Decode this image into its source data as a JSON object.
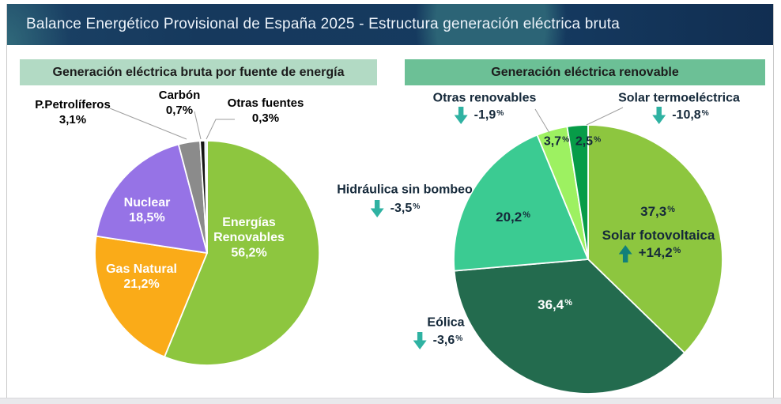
{
  "header": {
    "title": "Balance Energético Provisional de España 2025 - Estructura generación eléctrica bruta",
    "bg_color": "#16395d",
    "accent_blob_color": "#2c6476",
    "text_color": "#edf3fa"
  },
  "trend_icons": {
    "up_color": "#11807a",
    "down_color": "#2fb2a2"
  },
  "chart_data": [
    {
      "type": "pie",
      "title": "Generación eléctrica bruta por fuente de energía",
      "title_bg": "#b2dac4",
      "direction": "clockwise",
      "start_angle_deg": 0,
      "unit": "%",
      "slices": [
        {
          "label": "Energías Renovables",
          "value": 56.2,
          "pct_display": "56,2%",
          "color": "#8dc63f",
          "label_inside": true,
          "label_color": "#ffffff"
        },
        {
          "label": "Gas Natural",
          "value": 21.2,
          "pct_display": "21,2%",
          "color": "#faab18",
          "label_inside": true,
          "label_color": "#ffffff"
        },
        {
          "label": "Nuclear",
          "value": 18.5,
          "pct_display": "18,5%",
          "color": "#9673e6",
          "label_inside": true,
          "label_color": "#ffffff"
        },
        {
          "label": "P.Petrolíferos",
          "value": 3.1,
          "pct_display": "3,1%",
          "color": "#8b8b8b",
          "label_inside": false,
          "label_color": "#000000"
        },
        {
          "label": "Carbón",
          "value": 0.7,
          "pct_display": "0,7%",
          "color": "#141414",
          "label_inside": false,
          "label_color": "#000000"
        },
        {
          "label": "Otras fuentes",
          "value": 0.3,
          "pct_display": "0,3%",
          "color": "#bdd7ee",
          "label_inside": false,
          "label_color": "#000000"
        }
      ]
    },
    {
      "type": "pie",
      "title": "Generación eléctrica renovable",
      "title_bg": "#6cc096",
      "direction": "clockwise",
      "start_angle_deg": 0,
      "unit": "%",
      "slices": [
        {
          "label": "Solar fotovoltaica",
          "value": 37.3,
          "pct_display": "37,3%",
          "change_display": "+14,2%",
          "trend": "up",
          "color": "#8dc63f",
          "label_inside": true
        },
        {
          "label": "Eólica",
          "value": 36.4,
          "pct_display": "36,4%",
          "change_display": "-3,6%",
          "trend": "down",
          "color": "#236b4e",
          "label_inside": false
        },
        {
          "label": "Hidráulica sin bombeo",
          "value": 20.2,
          "pct_display": "20,2%",
          "change_display": "-3,5%",
          "trend": "down",
          "color": "#3bcb92",
          "label_inside": false
        },
        {
          "label": "Otras renovables",
          "value": 3.7,
          "pct_display": "3,7%",
          "change_display": "-1,9%",
          "trend": "down",
          "color": "#9df161",
          "label_inside": false
        },
        {
          "label": "Solar termoeléctrica",
          "value": 2.5,
          "pct_display": "2,5%",
          "change_display": "-10,8%",
          "trend": "down",
          "color": "#079c48",
          "label_inside": false
        }
      ]
    }
  ]
}
